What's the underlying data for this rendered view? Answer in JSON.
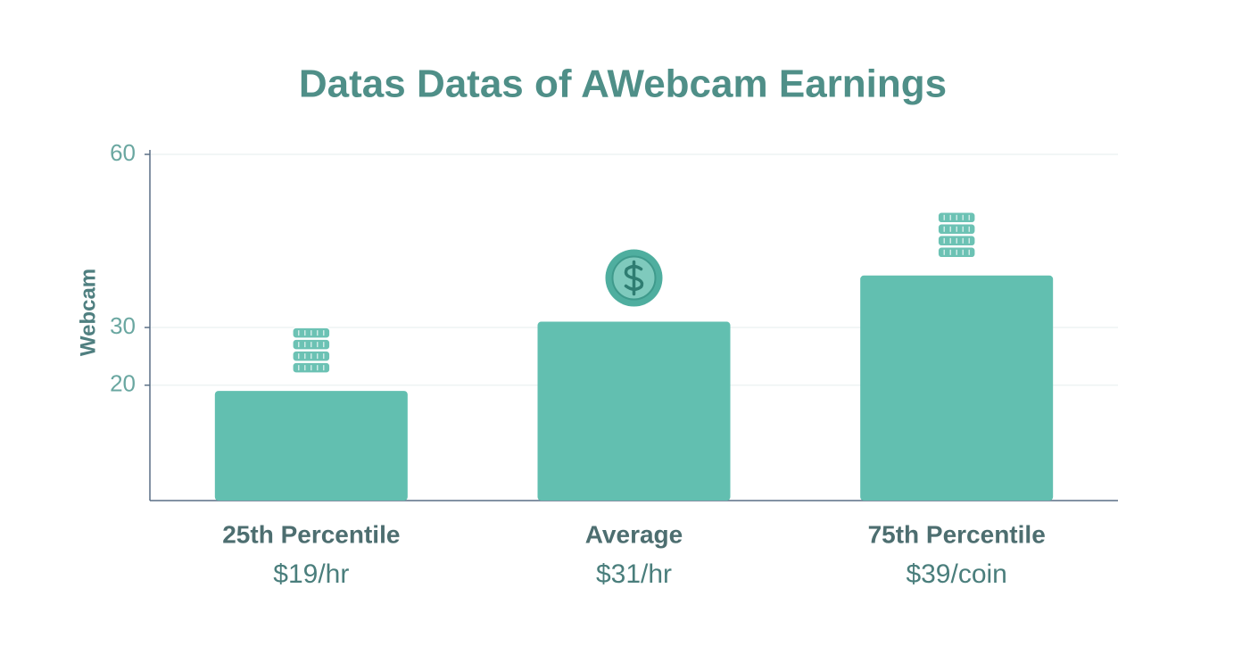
{
  "chart_data": {
    "type": "bar",
    "title": "Datas Datas of AWebcam Earnings",
    "y_label": "Webcam",
    "categories": [
      "25th Percentile",
      "Average",
      "75th Percentile"
    ],
    "values": [
      19,
      31,
      39
    ],
    "value_labels": [
      "$19/hr",
      "$31/hr",
      "$39/coin"
    ],
    "color": "#62bfb0",
    "ylim": [
      0,
      60
    ],
    "yticks": [
      20,
      30,
      60
    ],
    "grid": true
  }
}
